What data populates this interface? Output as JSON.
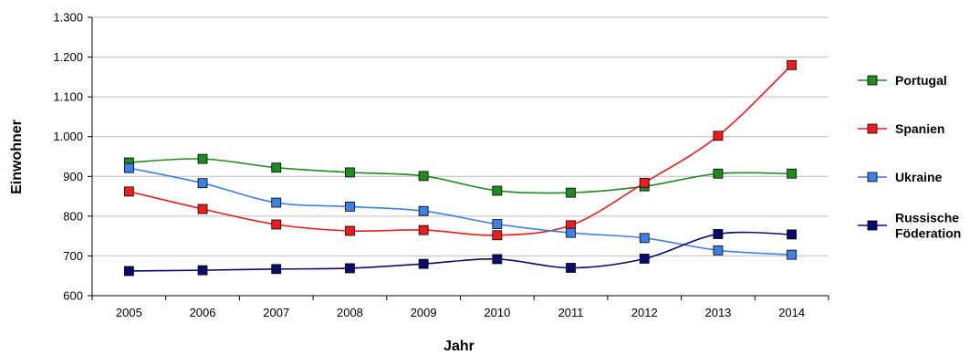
{
  "chart_data": {
    "type": "line",
    "title": "",
    "xlabel": "Jahr",
    "ylabel": "Einwohner",
    "categories": [
      "2005",
      "2006",
      "2007",
      "2008",
      "2009",
      "2010",
      "2011",
      "2012",
      "2013",
      "2014"
    ],
    "ylim": [
      600,
      1300
    ],
    "yticks": [
      600,
      700,
      800,
      900,
      1000,
      1100,
      1200,
      1300
    ],
    "ytick_labels": [
      "600",
      "700",
      "800",
      "900",
      "1.000",
      "1.100",
      "1.200",
      "1.300"
    ],
    "grid": true,
    "legend": "right",
    "series": [
      {
        "name": "Portugal",
        "name_lines": [
          "Portugal"
        ],
        "color": "#1e8c1e",
        "values": [
          935,
          944,
          922,
          910,
          901,
          864,
          859,
          875,
          907,
          907
        ]
      },
      {
        "name": "Spanien",
        "name_lines": [
          "Spanien"
        ],
        "color": "#ee1c1c",
        "values": [
          862,
          818,
          779,
          763,
          765,
          752,
          777,
          884,
          1002,
          1180
        ]
      },
      {
        "name": "Ukraine",
        "name_lines": [
          "Ukraine"
        ],
        "color": "#3f7fe6",
        "values": [
          921,
          883,
          834,
          824,
          813,
          780,
          758,
          745,
          714,
          703
        ]
      },
      {
        "name": "Russische Föderation",
        "name_lines": [
          "Russische",
          "Föderation"
        ],
        "color": "#0a0a6e",
        "values": [
          662,
          664,
          667,
          669,
          680,
          692,
          670,
          693,
          755,
          754
        ]
      }
    ]
  }
}
